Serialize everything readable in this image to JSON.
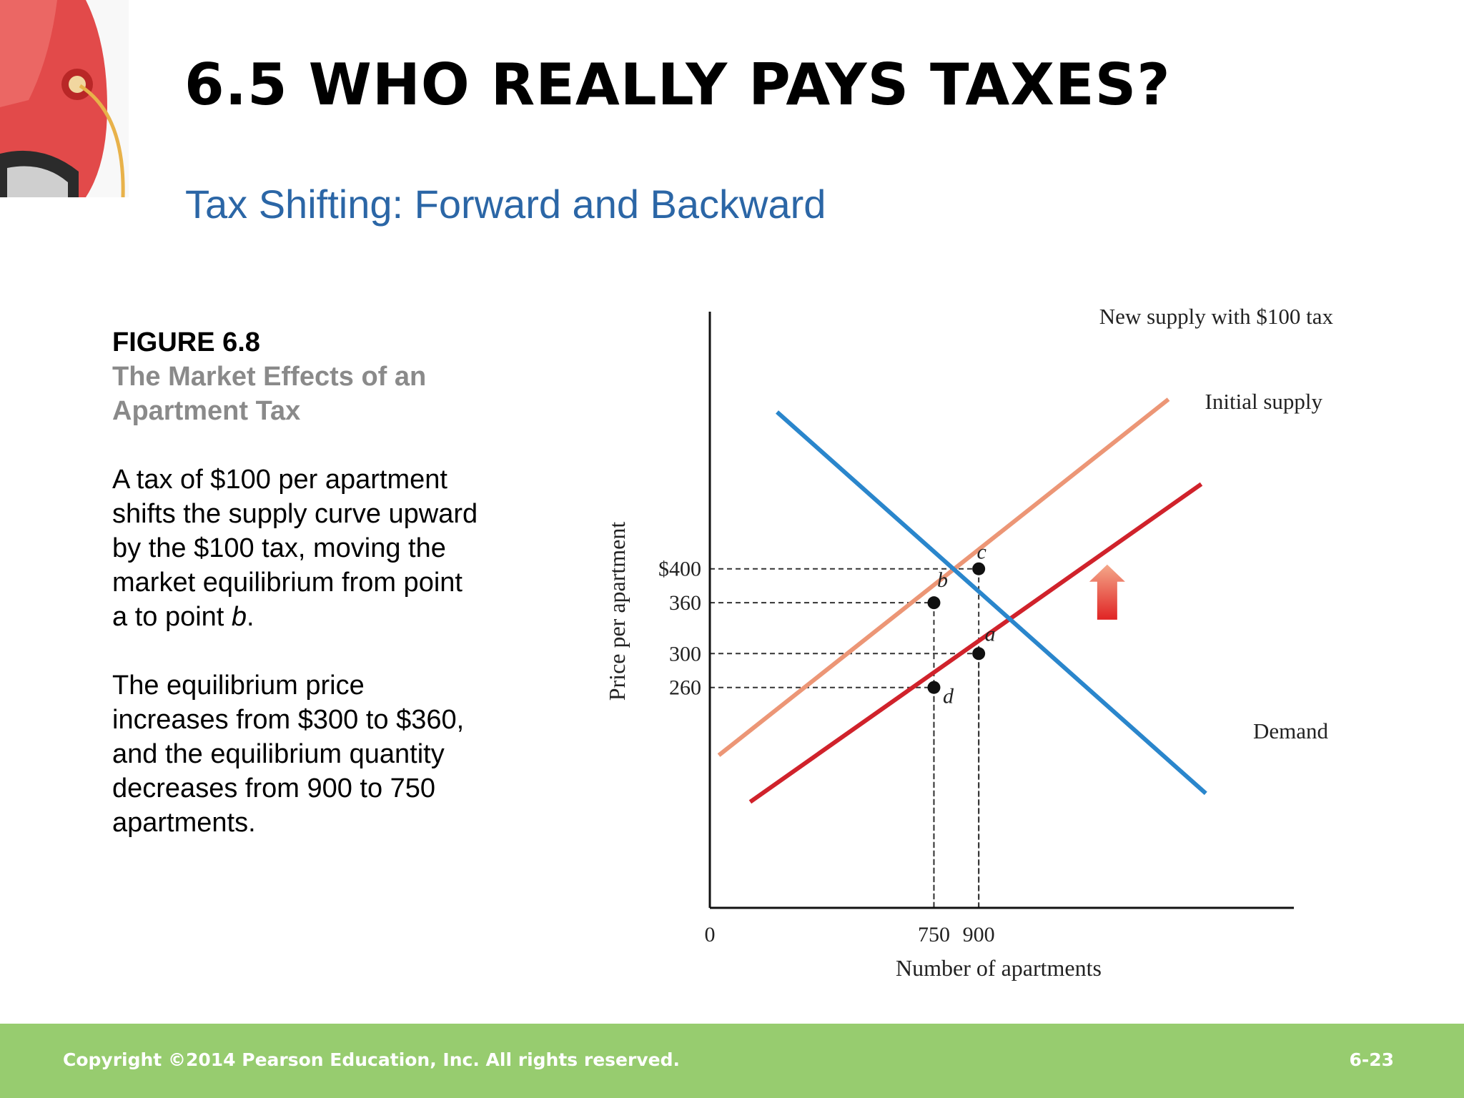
{
  "slide": {
    "title": "6.5 WHO REALLY PAYS TAXES?",
    "subtitle": "Tax Shifting: Forward and Backward",
    "figure_label": "FIGURE 6.8",
    "figure_title": "The Market Effects of an Apartment Tax",
    "paragraph1_pre": "A tax of $100 per apartment shifts the supply curve upward by the $100 tax, moving the market equilibrium from point a to point ",
    "paragraph1_italic": "b",
    "paragraph1_post": ".",
    "paragraph2": "The equilibrium price increases from $300 to $360, and the equilibrium quantity decreases from 900 to 750 apartments.",
    "colors": {
      "title": "#000000",
      "subtitle": "#2b66a6",
      "figure_title": "#8a8a8a",
      "footer": "#97cc6f"
    }
  },
  "footer": {
    "copyright": "Copyright ©2014 Pearson Education, Inc. All rights reserved.",
    "page": "6-23"
  },
  "chart_data": {
    "type": "line",
    "xlabel": "Number of apartments",
    "ylabel": "Price per apartment",
    "x_origin_label": "0",
    "x_ticks": [
      {
        "value": 750,
        "label": "750"
      },
      {
        "value": 900,
        "label": "900"
      }
    ],
    "y_ticks": [
      {
        "value": 260,
        "label": "260"
      },
      {
        "value": 300,
        "label": "300"
      },
      {
        "value": 360,
        "label": "360"
      },
      {
        "value": 400,
        "label": "$400"
      }
    ],
    "xlim": [
      0,
      1950
    ],
    "ylim": [
      0,
      700
    ],
    "grid": false,
    "series": [
      {
        "name": "New supply with $100 tax",
        "color": "#ec9676",
        "points": [
          [
            30,
            180
          ],
          [
            1535,
            600
          ]
        ]
      },
      {
        "name": "Initial supply",
        "color": "#d0222b",
        "points": [
          [
            135,
            125
          ],
          [
            1645,
            500
          ]
        ]
      },
      {
        "name": "Demand",
        "color": "#2a86cc",
        "points": [
          [
            225,
            585
          ],
          [
            1660,
            135
          ]
        ]
      }
    ],
    "points": [
      {
        "label": "a",
        "x": 900,
        "y": 300
      },
      {
        "label": "b",
        "x": 750,
        "y": 360
      },
      {
        "label": "c",
        "x": 900,
        "y": 400
      },
      {
        "label": "d",
        "x": 750,
        "y": 260
      }
    ],
    "annotations": [
      {
        "type": "arrow-up",
        "x": 1330,
        "y_from": 340,
        "y_to": 405,
        "meaning": "supply shifts upward by the tax"
      }
    ]
  }
}
